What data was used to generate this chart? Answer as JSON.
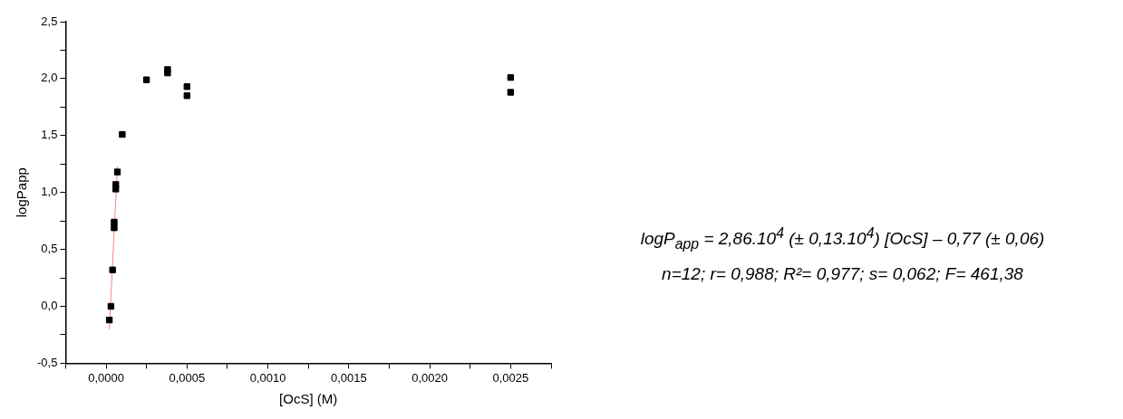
{
  "chart_data": {
    "type": "scatter",
    "xlabel": "[OcS] (M)",
    "ylabel": "logPapp",
    "xlim": [
      -0.00025,
      0.00275
    ],
    "xticks": [
      {
        "value": -0.00025,
        "label": null
      },
      {
        "value": 0,
        "label": "0,0000"
      },
      {
        "value": 0.00025,
        "label": null
      },
      {
        "value": 0.0005,
        "label": "0,0005"
      },
      {
        "value": 0.00075,
        "label": null
      },
      {
        "value": 0.001,
        "label": "0,0010"
      },
      {
        "value": 0.00125,
        "label": null
      },
      {
        "value": 0.0015,
        "label": "0,0015"
      },
      {
        "value": 0.00175,
        "label": null
      },
      {
        "value": 0.002,
        "label": "0,0020"
      },
      {
        "value": 0.00225,
        "label": null
      },
      {
        "value": 0.0025,
        "label": "0,0025"
      },
      {
        "value": 0.00275,
        "label": null
      }
    ],
    "ylim": [
      -0.5,
      2.5
    ],
    "yticks": [
      {
        "value": -0.5,
        "label": "-0,5"
      },
      {
        "value": -0.25,
        "label": null
      },
      {
        "value": 0,
        "label": "0,0"
      },
      {
        "value": 0.25,
        "label": null
      },
      {
        "value": 0.5,
        "label": "0,5"
      },
      {
        "value": 0.75,
        "label": null
      },
      {
        "value": 1,
        "label": "1,0"
      },
      {
        "value": 1.25,
        "label": null
      },
      {
        "value": 1.5,
        "label": "1,5"
      },
      {
        "value": 1.75,
        "label": null
      },
      {
        "value": 2,
        "label": "2,0"
      },
      {
        "value": 2.25,
        "label": null
      },
      {
        "value": 2.5,
        "label": "2,5"
      }
    ],
    "grid": false,
    "legend": false,
    "series": [
      {
        "type": "scatter",
        "color": "#000000",
        "marker": "square",
        "x": [
          2e-05,
          3e-05,
          4e-05,
          5e-05,
          5e-05,
          6e-05,
          6e-05,
          7e-05,
          0.0001,
          0.00025,
          0.00038,
          0.00038,
          0.0005,
          0.0005,
          0.0025,
          0.0025
        ],
        "values": [
          -0.12,
          0.0,
          0.32,
          0.74,
          0.69,
          1.07,
          1.03,
          1.18,
          1.51,
          1.99,
          2.08,
          2.05,
          1.93,
          1.85,
          2.01,
          1.88
        ]
      },
      {
        "type": "line",
        "color": "#ff8080",
        "marker": "none",
        "line_style": "solid",
        "x": [
          2e-05,
          7e-05
        ],
        "values": [
          -0.2,
          1.23
        ]
      }
    ],
    "annotations": [
      "logP$_{app}$ = 2,86.10$^{4}$ (± 0,13.10$^{4}$) [OcS] – 0,77 (± 0,06)",
      "n=12; r= 0,988; R²= 0,977; s= 0,062; F= 461,38"
    ]
  }
}
